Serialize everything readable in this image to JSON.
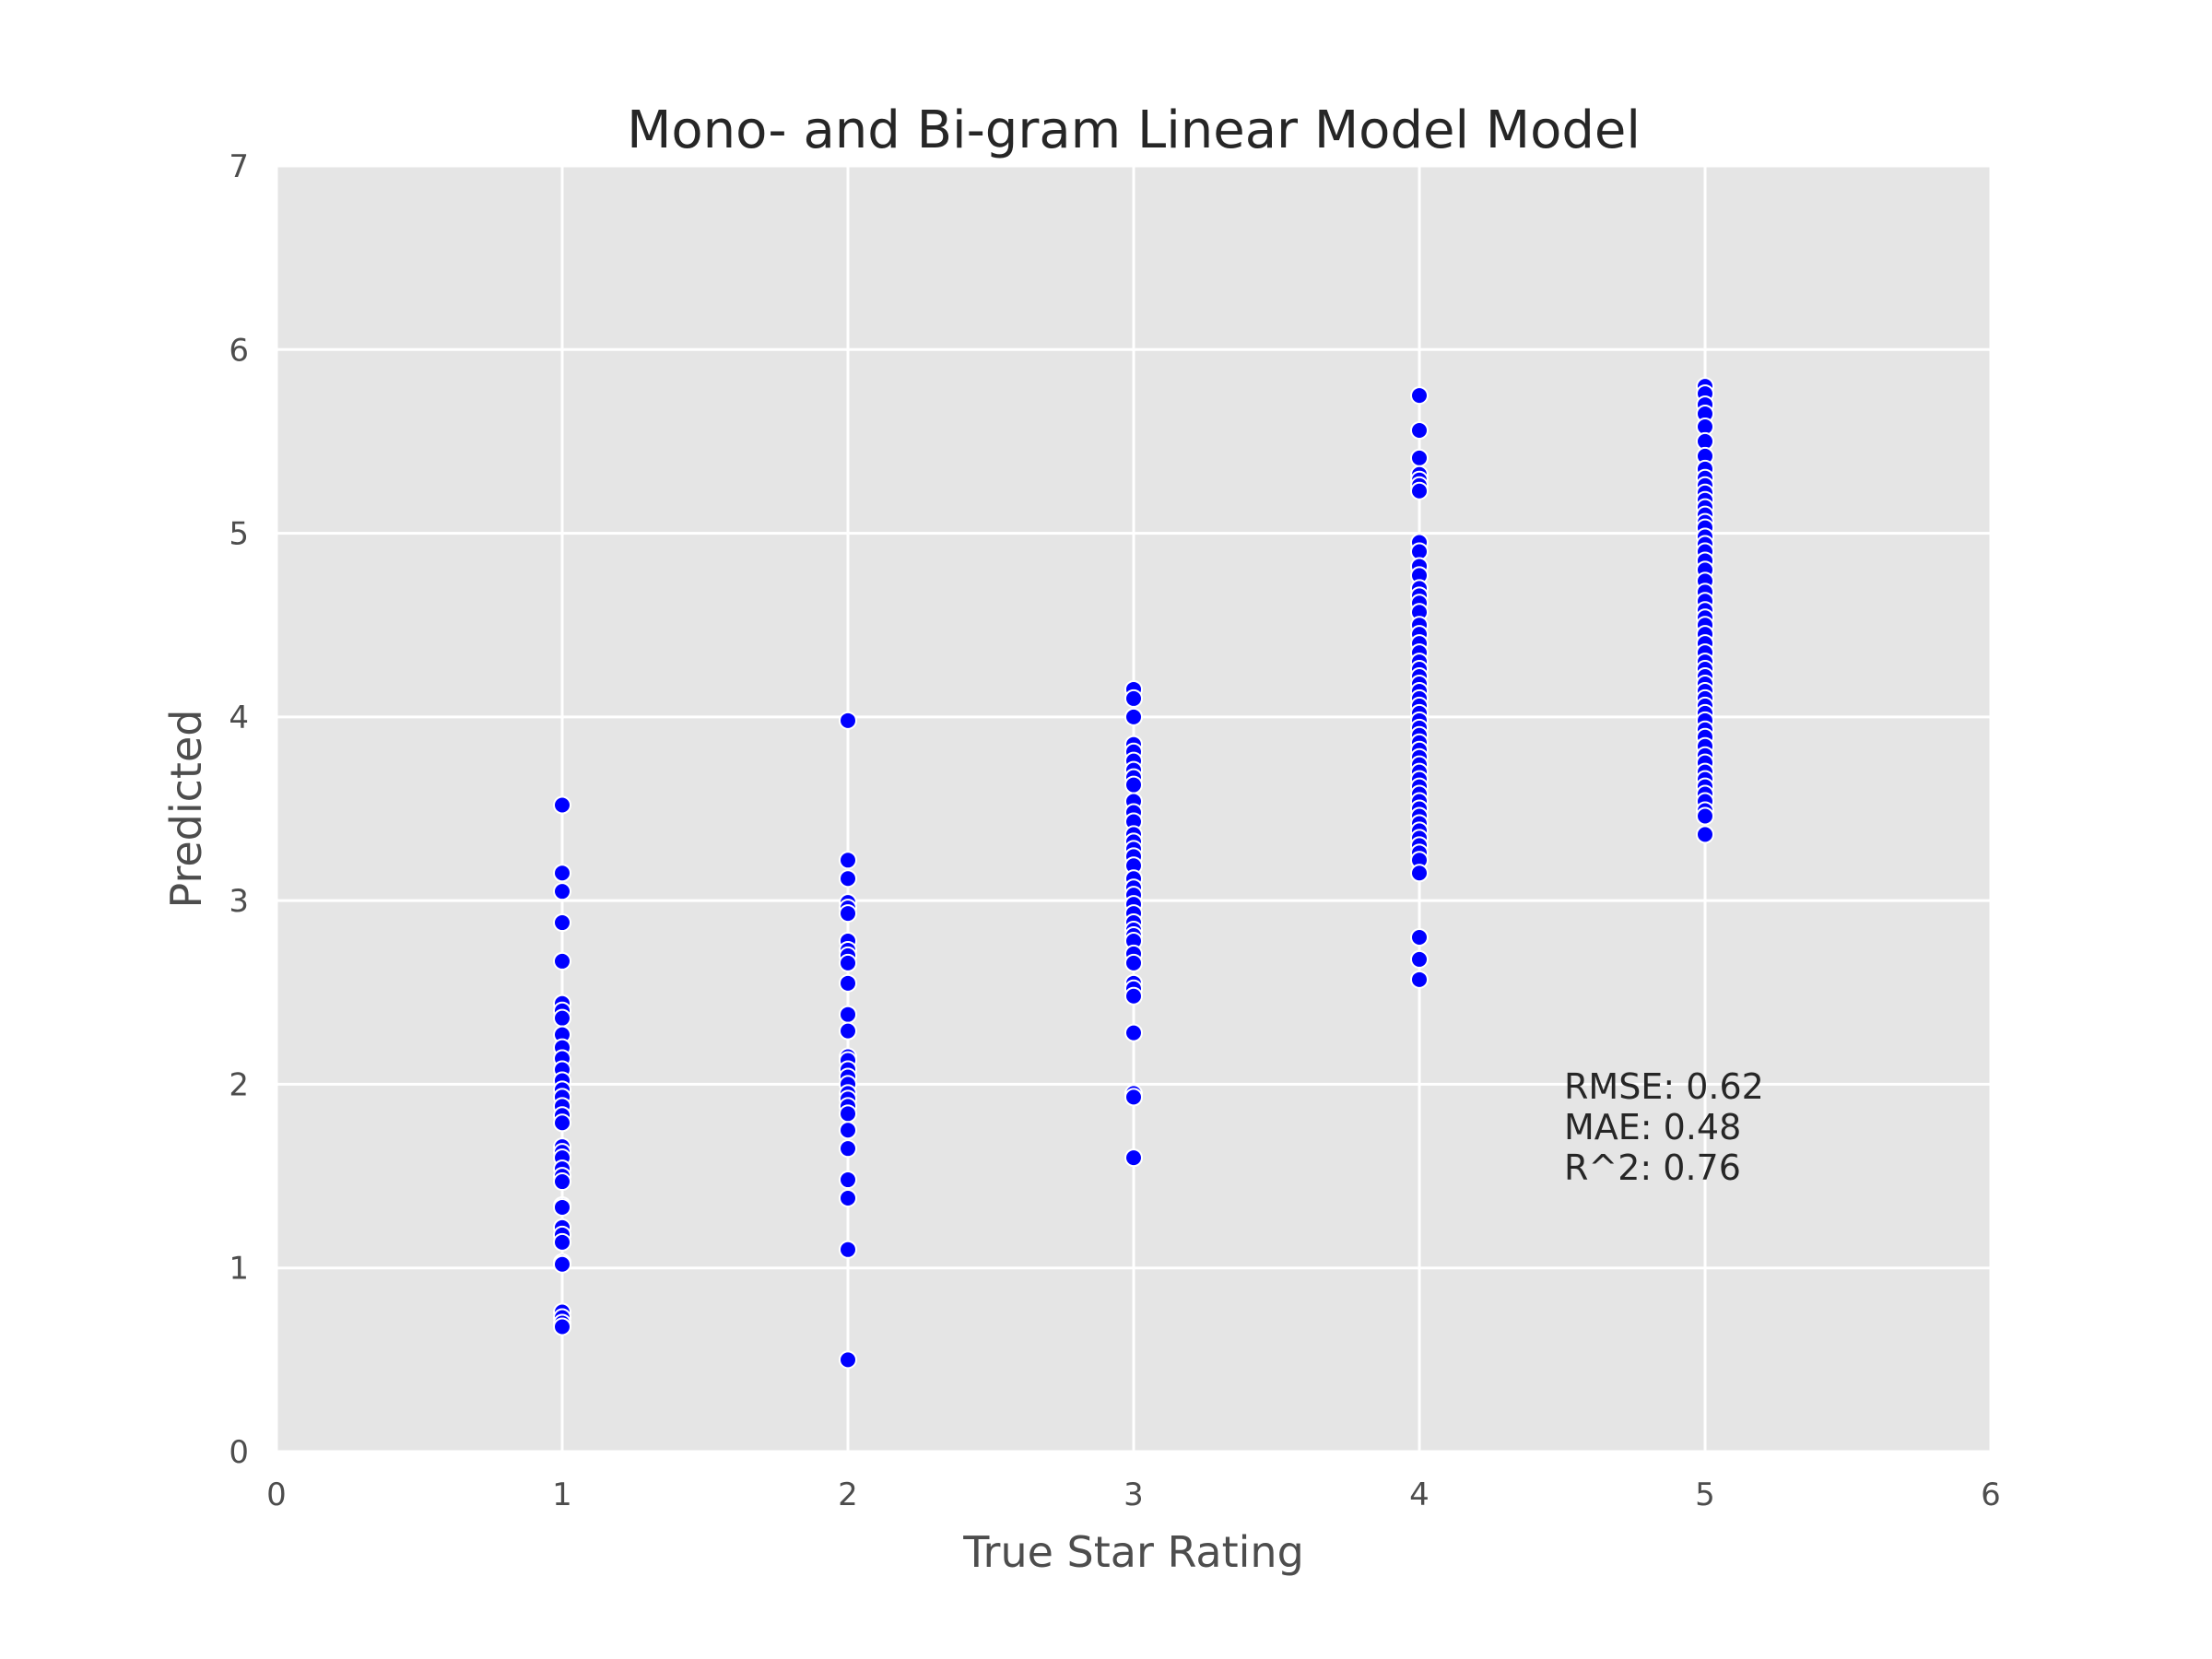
{
  "chart_data": {
    "type": "scatter",
    "title": "Mono- and Bi-gram Linear Model Model",
    "xlabel": "True Star Rating",
    "ylabel": "Predicted",
    "xlim": [
      0,
      6
    ],
    "ylim": [
      0,
      7
    ],
    "xticks": [
      "0",
      "1",
      "2",
      "3",
      "4",
      "5",
      "6"
    ],
    "yticks": [
      "0",
      "1",
      "2",
      "3",
      "4",
      "5",
      "6",
      "7"
    ],
    "grid": true,
    "marker_color": "#0000ff",
    "background_color": "#e5e5e5",
    "annotation": [
      "RMSE: 0.62",
      "MAE: 0.48",
      "R^2: 0.76"
    ],
    "series": [
      {
        "x": 1,
        "values": [
          3.52,
          3.15,
          3.05,
          2.88,
          2.67,
          2.44,
          2.4,
          2.36,
          2.27,
          2.2,
          2.14,
          2.08,
          2.02,
          1.97,
          1.93,
          1.88,
          1.83,
          1.79,
          1.66,
          1.63,
          1.6,
          1.54,
          1.5,
          1.47,
          1.34,
          1.33,
          1.22,
          1.18,
          1.14,
          1.03,
          1.02,
          0.76,
          0.73,
          0.7,
          0.68
        ]
      },
      {
        "x": 2,
        "values": [
          3.98,
          3.22,
          3.12,
          2.99,
          2.96,
          2.93,
          2.78,
          2.73,
          2.7,
          2.66,
          2.55,
          2.38,
          2.29,
          2.15,
          2.13,
          2.08,
          2.04,
          2.0,
          1.95,
          1.92,
          1.88,
          1.84,
          1.75,
          1.65,
          1.48,
          1.38,
          1.1,
          0.5
        ]
      },
      {
        "x": 3,
        "values": [
          4.15,
          4.1,
          4.0,
          3.85,
          3.81,
          3.76,
          3.71,
          3.67,
          3.63,
          3.54,
          3.48,
          3.43,
          3.36,
          3.32,
          3.28,
          3.24,
          3.19,
          3.12,
          3.07,
          3.03,
          2.98,
          2.93,
          2.88,
          2.84,
          2.81,
          2.78,
          2.71,
          2.66,
          2.55,
          2.52,
          2.48,
          2.28,
          1.95,
          1.93,
          1.6
        ]
      },
      {
        "x": 4,
        "values": [
          5.75,
          5.56,
          5.41,
          5.32,
          5.29,
          5.26,
          5.23,
          4.95,
          4.9,
          4.82,
          4.77,
          4.7,
          4.66,
          4.62,
          4.57,
          4.5,
          4.45,
          4.4,
          4.35,
          4.3,
          4.26,
          4.22,
          4.18,
          4.14,
          4.1,
          4.06,
          4.02,
          3.98,
          3.94,
          3.9,
          3.86,
          3.82,
          3.78,
          3.74,
          3.7,
          3.66,
          3.62,
          3.58,
          3.54,
          3.5,
          3.46,
          3.42,
          3.38,
          3.34,
          3.3,
          3.26,
          3.22,
          3.15,
          2.8,
          2.68,
          2.57
        ]
      },
      {
        "x": 5,
        "values": [
          5.8,
          5.76,
          5.7,
          5.65,
          5.58,
          5.5,
          5.42,
          5.35,
          5.3,
          5.26,
          5.22,
          5.18,
          5.14,
          5.1,
          5.06,
          5.03,
          4.98,
          4.94,
          4.9,
          4.85,
          4.8,
          4.74,
          4.68,
          4.63,
          4.58,
          4.54,
          4.5,
          4.45,
          4.4,
          4.35,
          4.3,
          4.26,
          4.22,
          4.18,
          4.14,
          4.1,
          4.06,
          4.02,
          3.98,
          3.93,
          3.89,
          3.84,
          3.79,
          3.75,
          3.7,
          3.66,
          3.62,
          3.58,
          3.54,
          3.49,
          3.46,
          3.36
        ]
      }
    ]
  }
}
